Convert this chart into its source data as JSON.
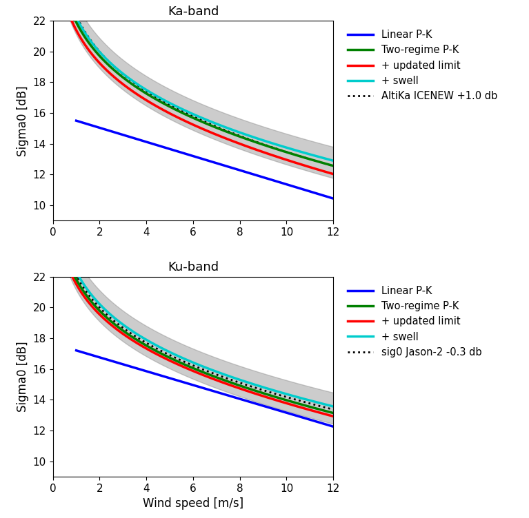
{
  "title_ka": "Ka-band",
  "title_ku": "Ku-band",
  "xlabel": "Wind speed [m/s]",
  "ylabel": "Sigma0 [dB]",
  "xlim": [
    0,
    12
  ],
  "ylim": [
    9,
    22
  ],
  "yticks": [
    10,
    12,
    14,
    16,
    18,
    20,
    22
  ],
  "xticks": [
    0,
    2,
    4,
    6,
    8,
    10,
    12
  ],
  "legend_ka_labels": [
    "Linear P-K",
    "Two-regime P-K",
    "+ updated limit",
    "+ swell",
    "AltiKa ICENEW +1.0 db"
  ],
  "legend_ku_labels": [
    "Linear P-K",
    "Two-regime P-K",
    "+ updated limit",
    "+ swell",
    "sig0 Jason-2 -0.3 db"
  ],
  "colors": {
    "linear": "#0000ff",
    "two_regime": "#008000",
    "updated": "#ff0000",
    "swell": "#00cccc",
    "obs": "#000000"
  },
  "gray_color": "#808080",
  "gray_alpha": 0.4
}
